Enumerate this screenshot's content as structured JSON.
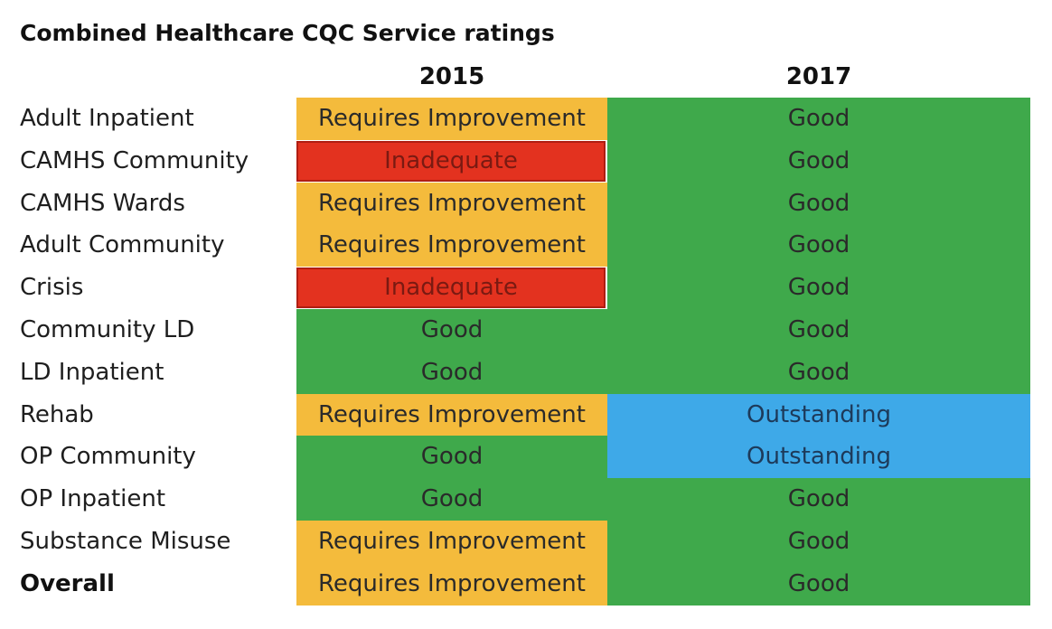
{
  "chart_data": {
    "type": "table",
    "title": "Combined Healthcare CQC Service ratings",
    "columns": [
      "2015",
      "2017"
    ],
    "rows": [
      {
        "service": "Adult Inpatient",
        "r2015": "Requires Improvement",
        "r2017": "Good",
        "bold": false
      },
      {
        "service": "CAMHS Community",
        "r2015": "Inadequate",
        "r2017": "Good",
        "bold": false
      },
      {
        "service": "CAMHS Wards",
        "r2015": "Requires Improvement",
        "r2017": "Good",
        "bold": false
      },
      {
        "service": "Adult Community",
        "r2015": "Requires Improvement",
        "r2017": "Good",
        "bold": false
      },
      {
        "service": "Crisis",
        "r2015": "Inadequate",
        "r2017": "Good",
        "bold": false
      },
      {
        "service": "Community LD",
        "r2015": "Good",
        "r2017": "Good",
        "bold": false
      },
      {
        "service": "LD Inpatient",
        "r2015": "Good",
        "r2017": "Good",
        "bold": false
      },
      {
        "service": "Rehab",
        "r2015": "Requires Improvement",
        "r2017": "Outstanding",
        "bold": false
      },
      {
        "service": "OP Community",
        "r2015": "Good",
        "r2017": "Outstanding",
        "bold": false
      },
      {
        "service": "OP Inpatient",
        "r2015": "Good",
        "r2017": "Good",
        "bold": false
      },
      {
        "service": "Substance Misuse",
        "r2015": "Requires Improvement",
        "r2017": "Good",
        "bold": false
      },
      {
        "service": "Overall",
        "r2015": "Requires Improvement",
        "r2017": "Good",
        "bold": true
      }
    ]
  },
  "rating_colors": {
    "Requires Improvement": "#f4bb3c",
    "Inadequate": "#e3321f",
    "Good": "#3fa94b",
    "Outstanding": "#3ea9e8"
  }
}
